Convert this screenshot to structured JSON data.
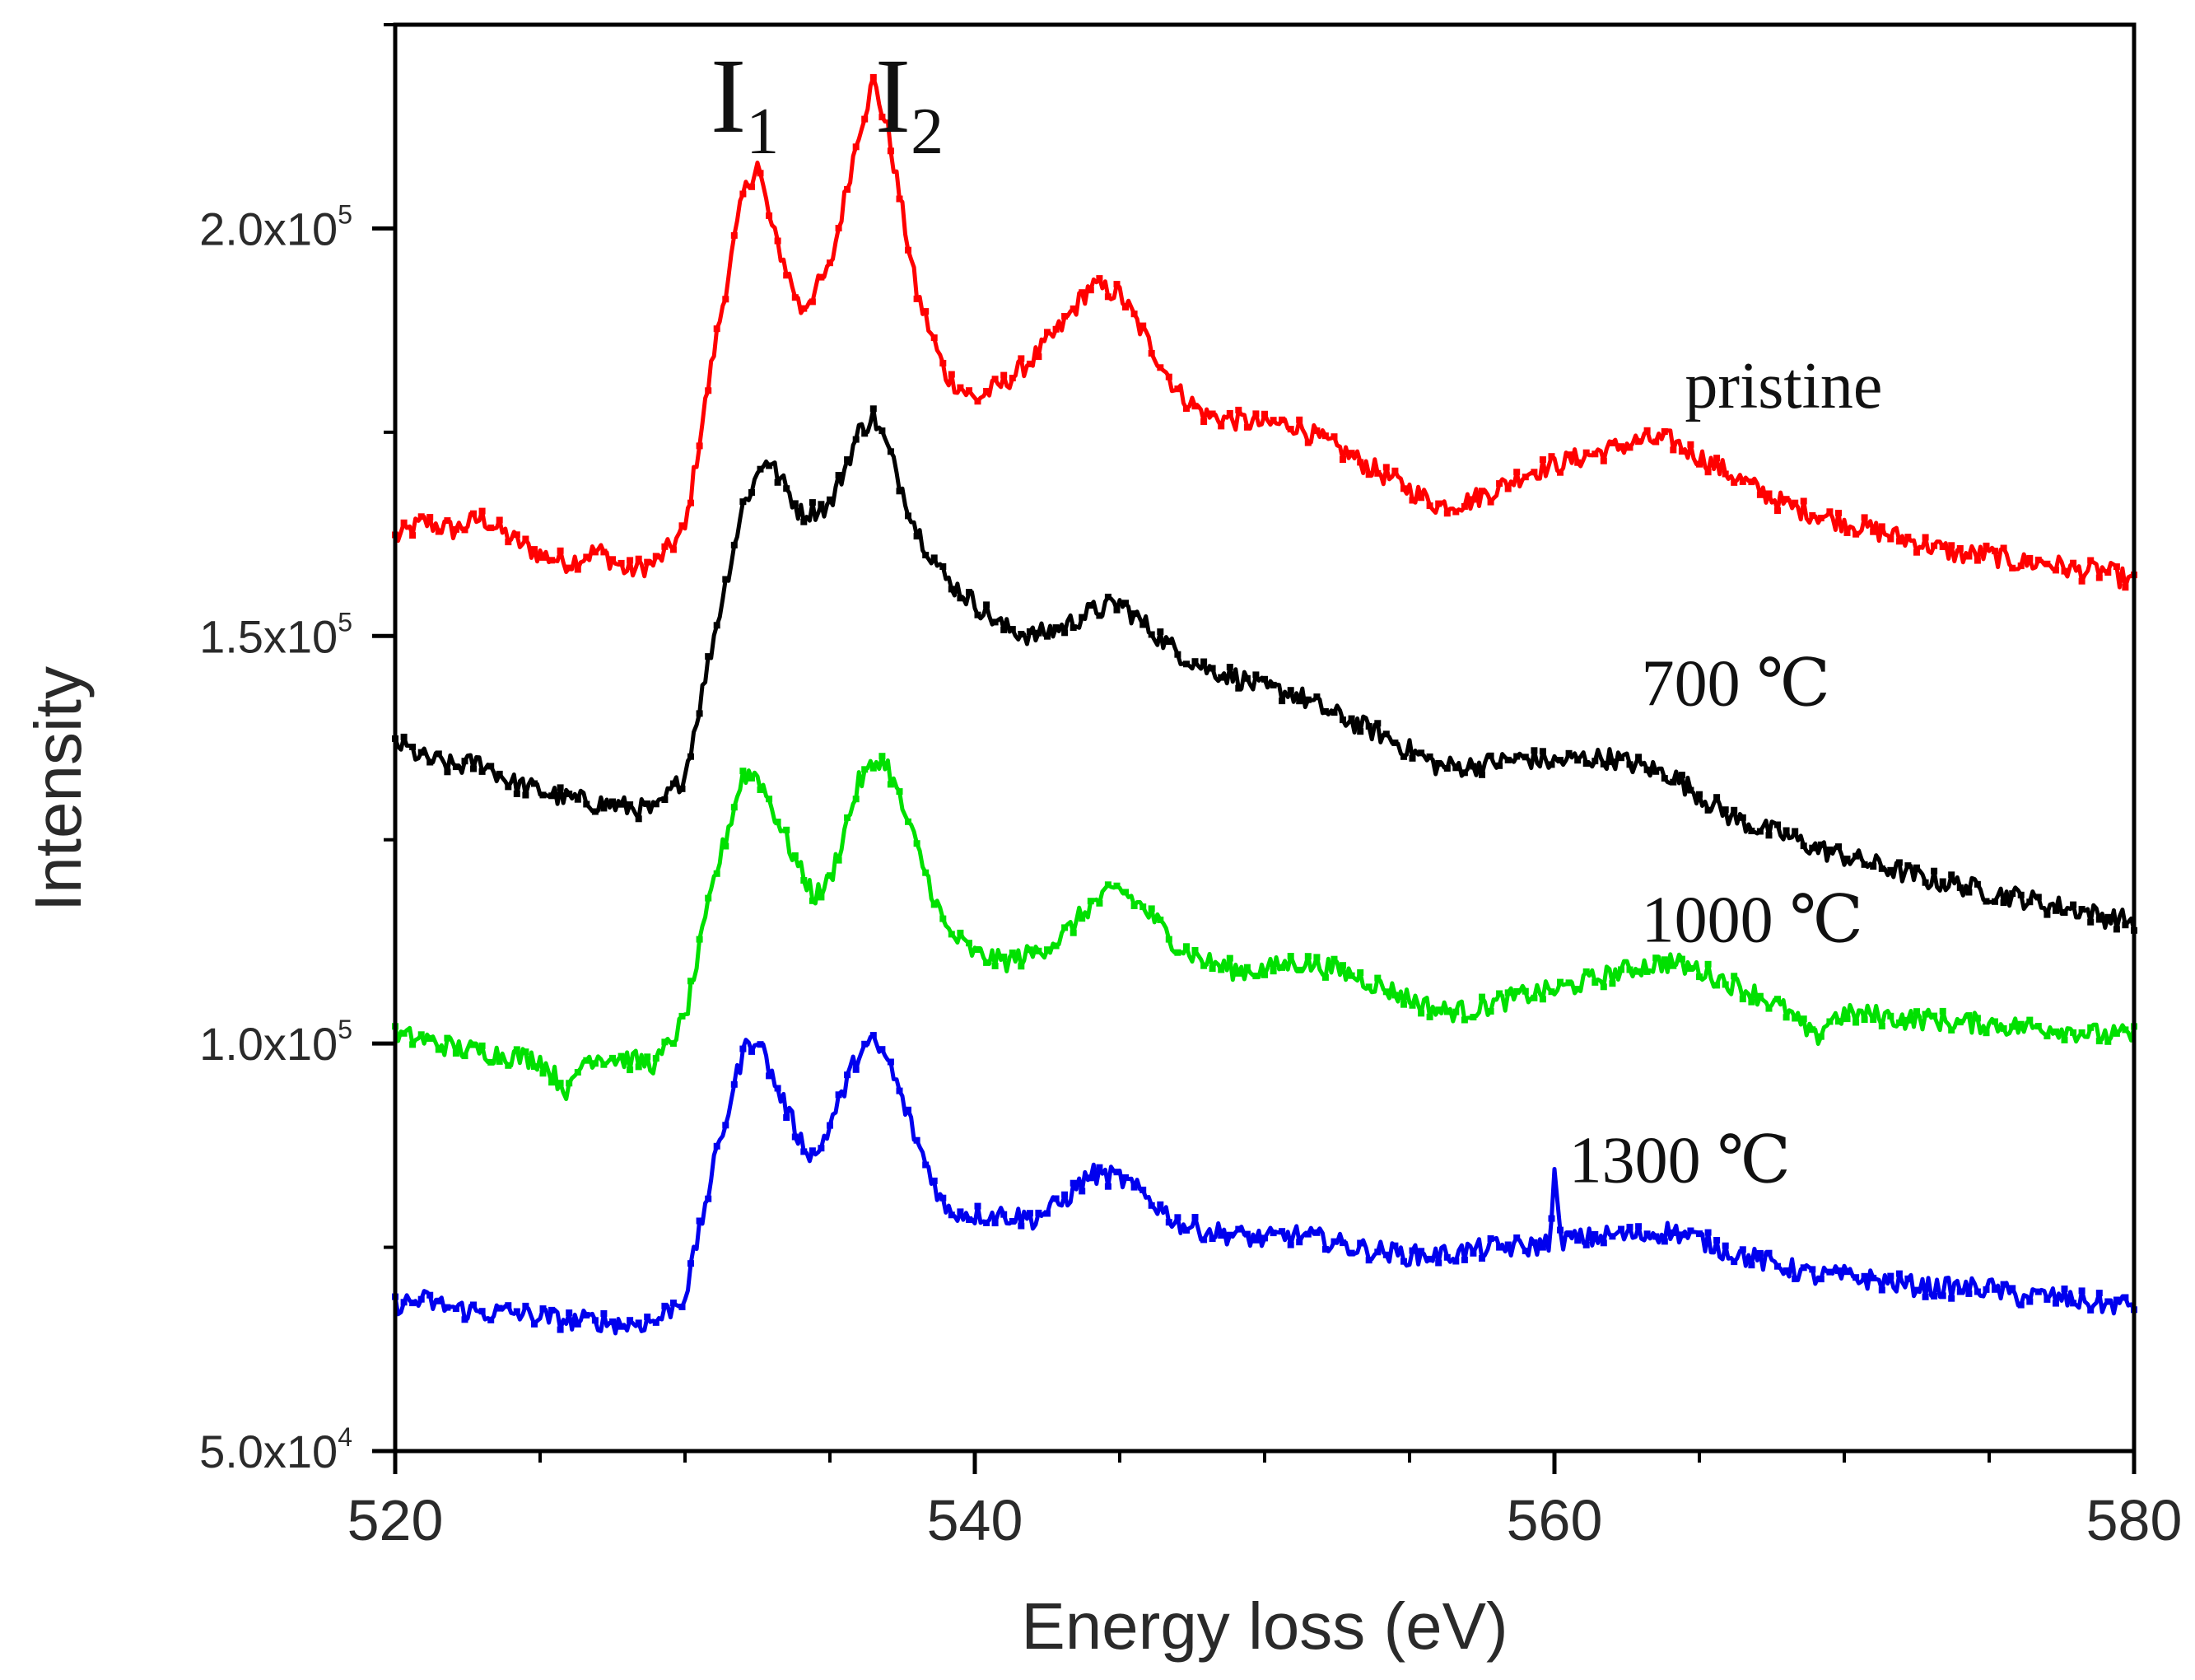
{
  "chart_data": {
    "type": "line",
    "title": "",
    "xlabel": "Energy loss (eV)",
    "ylabel": "Intensity",
    "xlim": [
      520,
      580
    ],
    "ylim": [
      50000,
      225000
    ],
    "x_ticks": [
      520,
      540,
      560,
      580
    ],
    "x_tick_labels": [
      "520",
      "540",
      "560",
      "580"
    ],
    "y_ticks": [
      50000,
      100000,
      150000,
      200000
    ],
    "y_tick_labels": [
      {
        "mantissa": "5.0x10",
        "exponent": "4"
      },
      {
        "mantissa": "1.0x10",
        "exponent": "5"
      },
      {
        "mantissa": "1.5x10",
        "exponent": "5"
      },
      {
        "mantissa": "2.0x10",
        "exponent": "5"
      }
    ],
    "grid": false,
    "annotations": [
      {
        "base": "I",
        "sub": "1",
        "x": 532.3
      },
      {
        "base": "I",
        "sub": "2",
        "x": 536.5
      }
    ],
    "series": [
      {
        "name": "pristine",
        "color": "#ff0000",
        "label_anchor": [
          564.5,
          178000
        ],
        "points": [
          [
            520,
            162000
          ],
          [
            521,
            164000
          ],
          [
            522,
            163000
          ],
          [
            523,
            164500
          ],
          [
            524,
            162000
          ],
          [
            525,
            160000
          ],
          [
            526,
            159000
          ],
          [
            527,
            160500
          ],
          [
            528,
            158000
          ],
          [
            529,
            159000
          ],
          [
            530,
            163000
          ],
          [
            531,
            185000
          ],
          [
            532,
            204000
          ],
          [
            532.5,
            208000
          ],
          [
            533,
            200000
          ],
          [
            534,
            190000
          ],
          [
            535,
            195000
          ],
          [
            536,
            212000
          ],
          [
            536.5,
            218000
          ],
          [
            537,
            212000
          ],
          [
            538,
            192000
          ],
          [
            539,
            182000
          ],
          [
            540,
            179000
          ],
          [
            541,
            181000
          ],
          [
            542,
            184000
          ],
          [
            543,
            188000
          ],
          [
            544,
            193000
          ],
          [
            545,
            192000
          ],
          [
            546,
            186000
          ],
          [
            547,
            180000
          ],
          [
            548,
            177000
          ],
          [
            549,
            176500
          ],
          [
            550,
            176000
          ],
          [
            551,
            176000
          ],
          [
            552,
            174000
          ],
          [
            553,
            172000
          ],
          [
            554,
            170000
          ],
          [
            555,
            168000
          ],
          [
            556,
            166000
          ],
          [
            557,
            166500
          ],
          [
            558,
            168000
          ],
          [
            559,
            170000
          ],
          [
            560,
            171000
          ],
          [
            561,
            172000
          ],
          [
            562,
            173000
          ],
          [
            563,
            174000
          ],
          [
            564,
            174000
          ],
          [
            565,
            172000
          ],
          [
            566,
            170000
          ],
          [
            567,
            168000
          ],
          [
            568,
            166000
          ],
          [
            569,
            165000
          ],
          [
            570,
            164000
          ],
          [
            571,
            163000
          ],
          [
            572,
            162000
          ],
          [
            573,
            161000
          ],
          [
            574,
            160000
          ],
          [
            575,
            160000
          ],
          [
            576,
            159000
          ],
          [
            577,
            159000
          ],
          [
            578,
            158000
          ],
          [
            579,
            158000
          ],
          [
            580,
            156500
          ]
        ]
      },
      {
        "name": "700 ℃",
        "color": "#000000",
        "label_anchor": [
          563,
          141500
        ],
        "points": [
          [
            520,
            137000
          ],
          [
            521,
            135000
          ],
          [
            522,
            134000
          ],
          [
            523,
            134500
          ],
          [
            524,
            132000
          ],
          [
            525,
            131000
          ],
          [
            526,
            130000
          ],
          [
            527,
            129500
          ],
          [
            528,
            129000
          ],
          [
            529,
            128500
          ],
          [
            530,
            133000
          ],
          [
            531,
            150000
          ],
          [
            532,
            166000
          ],
          [
            532.8,
            172000
          ],
          [
            533.5,
            168000
          ],
          [
            534,
            165000
          ],
          [
            535,
            166000
          ],
          [
            536,
            175000
          ],
          [
            536.5,
            177000
          ],
          [
            537,
            173000
          ],
          [
            538,
            163000
          ],
          [
            539,
            157000
          ],
          [
            540,
            154000
          ],
          [
            541,
            151000
          ],
          [
            542,
            150000
          ],
          [
            543,
            151000
          ],
          [
            544,
            153000
          ],
          [
            545,
            154000
          ],
          [
            546,
            151000
          ],
          [
            547,
            148000
          ],
          [
            548,
            146000
          ],
          [
            549,
            145000
          ],
          [
            550,
            143500
          ],
          [
            551,
            143000
          ],
          [
            552,
            141000
          ],
          [
            553,
            139500
          ],
          [
            554,
            138000
          ],
          [
            555,
            136000
          ],
          [
            556,
            134000
          ],
          [
            557,
            134000
          ],
          [
            558,
            134500
          ],
          [
            559,
            135000
          ],
          [
            560,
            134500
          ],
          [
            561,
            135000
          ],
          [
            562,
            135000
          ],
          [
            563,
            134000
          ],
          [
            564,
            133000
          ],
          [
            565,
            130500
          ],
          [
            566,
            128000
          ],
          [
            567,
            126500
          ],
          [
            568,
            125500
          ],
          [
            569,
            124000
          ],
          [
            570,
            123000
          ],
          [
            571,
            122000
          ],
          [
            572,
            121000
          ],
          [
            573,
            120000
          ],
          [
            574,
            119500
          ],
          [
            575,
            118500
          ],
          [
            576,
            118000
          ],
          [
            577,
            117000
          ],
          [
            578,
            116500
          ],
          [
            579,
            115500
          ],
          [
            580,
            115000
          ]
        ]
      },
      {
        "name": "1000 ℃",
        "color": "#00e000",
        "label_anchor": [
          563,
          112500
        ],
        "points": [
          [
            520,
            101000
          ],
          [
            521,
            100500
          ],
          [
            522,
            99500
          ],
          [
            523,
            99000
          ],
          [
            524,
            98500
          ],
          [
            525,
            98000
          ],
          [
            526,
            94000
          ],
          [
            526.5,
            98000
          ],
          [
            527,
            98500
          ],
          [
            528,
            98000
          ],
          [
            529,
            97500
          ],
          [
            530,
            103000
          ],
          [
            531,
            120000
          ],
          [
            532,
            133000
          ],
          [
            532.5,
            133000
          ],
          [
            533,
            129000
          ],
          [
            534,
            121000
          ],
          [
            534.5,
            118000
          ],
          [
            535,
            120000
          ],
          [
            536,
            132000
          ],
          [
            536.7,
            135000
          ],
          [
            537,
            134000
          ],
          [
            538,
            124000
          ],
          [
            539,
            114000
          ],
          [
            540,
            111000
          ],
          [
            541,
            110000
          ],
          [
            542,
            111000
          ],
          [
            543,
            113000
          ],
          [
            544,
            117000
          ],
          [
            545,
            119000
          ],
          [
            546,
            116000
          ],
          [
            547,
            112000
          ],
          [
            548,
            110000
          ],
          [
            549,
            109000
          ],
          [
            550,
            109000
          ],
          [
            551,
            110000
          ],
          [
            552,
            109500
          ],
          [
            553,
            108500
          ],
          [
            554,
            107000
          ],
          [
            555,
            105500
          ],
          [
            556,
            104000
          ],
          [
            557,
            104000
          ],
          [
            558,
            105000
          ],
          [
            559,
            106000
          ],
          [
            560,
            106500
          ],
          [
            561,
            107500
          ],
          [
            562,
            108500
          ],
          [
            563,
            109500
          ],
          [
            564,
            110000
          ],
          [
            565,
            109000
          ],
          [
            566,
            107500
          ],
          [
            567,
            106000
          ],
          [
            568,
            104000
          ],
          [
            569,
            100500
          ],
          [
            569.5,
            103000
          ],
          [
            570,
            103500
          ],
          [
            571,
            103500
          ],
          [
            572,
            103000
          ],
          [
            573,
            103000
          ],
          [
            574,
            102500
          ],
          [
            575,
            102500
          ],
          [
            576,
            102000
          ],
          [
            577,
            102000
          ],
          [
            578,
            101500
          ],
          [
            579,
            101000
          ],
          [
            580,
            101000
          ]
        ]
      },
      {
        "name": "1300 ℃",
        "color": "#0000ee",
        "label_anchor": [
          560.5,
          83000
        ],
        "points": [
          [
            520,
            68000
          ],
          [
            521,
            68500
          ],
          [
            522,
            67500
          ],
          [
            523,
            67000
          ],
          [
            524,
            67000
          ],
          [
            525,
            66500
          ],
          [
            526,
            66000
          ],
          [
            527,
            66000
          ],
          [
            528,
            65500
          ],
          [
            529,
            66000
          ],
          [
            530,
            69000
          ],
          [
            531,
            85000
          ],
          [
            532,
            99000
          ],
          [
            532.5,
            101000
          ],
          [
            533,
            96000
          ],
          [
            534,
            88000
          ],
          [
            534.5,
            86000
          ],
          [
            535,
            90000
          ],
          [
            536,
            99000
          ],
          [
            536.5,
            100000
          ],
          [
            537,
            98000
          ],
          [
            538,
            88000
          ],
          [
            539,
            79500
          ],
          [
            540,
            79000
          ],
          [
            541,
            79000
          ],
          [
            542,
            78500
          ],
          [
            543,
            80500
          ],
          [
            544,
            84000
          ],
          [
            545,
            83500
          ],
          [
            546,
            81000
          ],
          [
            547,
            78000
          ],
          [
            548,
            77000
          ],
          [
            549,
            76500
          ],
          [
            550,
            76000
          ],
          [
            551,
            76500
          ],
          [
            552,
            76000
          ],
          [
            553,
            75000
          ],
          [
            554,
            74500
          ],
          [
            555,
            74000
          ],
          [
            556,
            74000
          ],
          [
            557,
            74500
          ],
          [
            558,
            75000
          ],
          [
            559,
            75000
          ],
          [
            559.8,
            75500
          ],
          [
            560,
            84000
          ],
          [
            560.2,
            76000
          ],
          [
            561,
            76000
          ],
          [
            562,
            76500
          ],
          [
            563,
            76500
          ],
          [
            564,
            77000
          ],
          [
            565,
            76000
          ],
          [
            566,
            74500
          ],
          [
            567,
            73500
          ],
          [
            568,
            72500
          ],
          [
            569,
            71500
          ],
          [
            570,
            71500
          ],
          [
            571,
            71000
          ],
          [
            572,
            70500
          ],
          [
            573,
            70000
          ],
          [
            574,
            70000
          ],
          [
            575,
            70000
          ],
          [
            576,
            69000
          ],
          [
            577,
            69000
          ],
          [
            578,
            68500
          ],
          [
            579,
            68000
          ],
          [
            580,
            68000
          ]
        ]
      }
    ]
  }
}
